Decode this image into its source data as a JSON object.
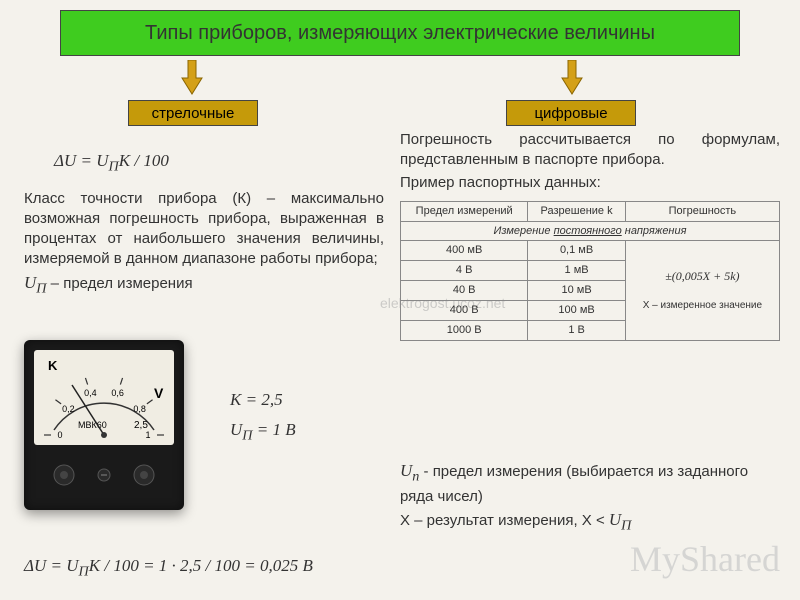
{
  "colors": {
    "title_bg": "#3fcc1f",
    "branch_bg": "#c59a0a",
    "arrow_fill": "#d4a017",
    "arrow_stroke": "#a06800",
    "page_bg": "#f4f2ec"
  },
  "title": "Типы приборов, измеряющих электрические величины",
  "branch_left": "стрелочные",
  "branch_right": "цифровые",
  "left": {
    "formula1": "ΔU = U_П K / 100",
    "text": "Класс точности прибора (К) – максимально возможная погрешность прибора, выраженная в процентах от наибольшего значения величины, измеряемой в данном диапазоне работы прибора;",
    "up_label": "U_П – предел измерения",
    "k_eq": "K = 2,5",
    "up_eq": "U_П = 1 В",
    "formula2": "ΔU = U_П K / 100 = 1 · 2,5 / 100 = 0,025 В"
  },
  "right": {
    "intro": "Погрешность рассчитывается по формулам, представленным в паспорте прибора.",
    "passport": "Пример паспортных данных:",
    "tbl_headers": [
      "Предел измерений",
      "Разрешение k",
      "Погрешность"
    ],
    "tbl_subhead": "Измерение постоянного напряжения",
    "rows": [
      [
        "400 мВ",
        "0,1 мВ"
      ],
      [
        "4 В",
        "1 мВ"
      ],
      [
        "40 В",
        "10 мВ"
      ],
      [
        "400 В",
        "100 мВ"
      ],
      [
        "1000 В",
        "1 В"
      ]
    ],
    "err_formula": "±(0,005X + 5k)",
    "err_note": "X – измеренное значение",
    "up_note": "U_п - предел измерения (выбирается из заданного ряда чисел)",
    "x_note": "X – результат измерения, X < U_П"
  },
  "meter": {
    "scale_vals": [
      "0",
      "0,2",
      "0,4",
      "0,6",
      "0,8",
      "1"
    ],
    "label_K": "K",
    "unit": "V",
    "model": "МВК60",
    "class": "2,5"
  },
  "watermark": "MyShared",
  "watermark2": "elektrogost.ucoz.net"
}
